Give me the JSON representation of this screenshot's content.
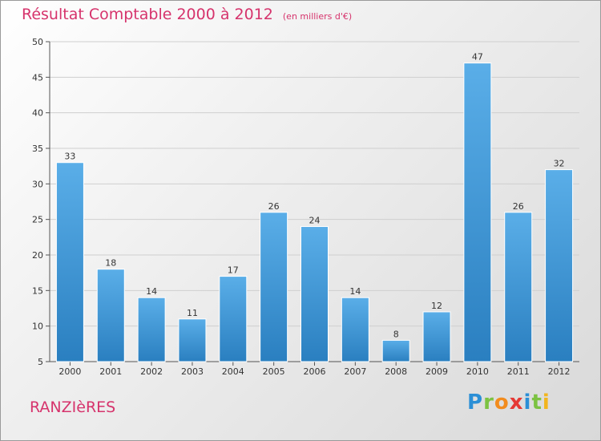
{
  "chart_data": {
    "type": "bar",
    "title": "Résultat Comptable 2000 à 2012",
    "unit": "(en milliers d'€)",
    "xlabel": "",
    "ylabel": "",
    "ylim": [
      5,
      50
    ],
    "yticks": [
      5,
      10,
      15,
      20,
      25,
      30,
      35,
      40,
      45,
      50
    ],
    "grid": true,
    "categories": [
      "2000",
      "2001",
      "2002",
      "2003",
      "2004",
      "2005",
      "2006",
      "2007",
      "2008",
      "2009",
      "2010",
      "2011",
      "2012"
    ],
    "values": [
      33,
      18,
      14,
      11,
      17,
      26,
      24,
      14,
      8,
      12,
      47,
      26,
      32
    ],
    "bar_color_top": "#5aaee8",
    "bar_color_bottom": "#2a7fc0"
  },
  "footer": {
    "place": "RANZIèRES",
    "logo_letters": [
      "P",
      "r",
      "o",
      "x",
      "i",
      "t",
      "i"
    ]
  }
}
